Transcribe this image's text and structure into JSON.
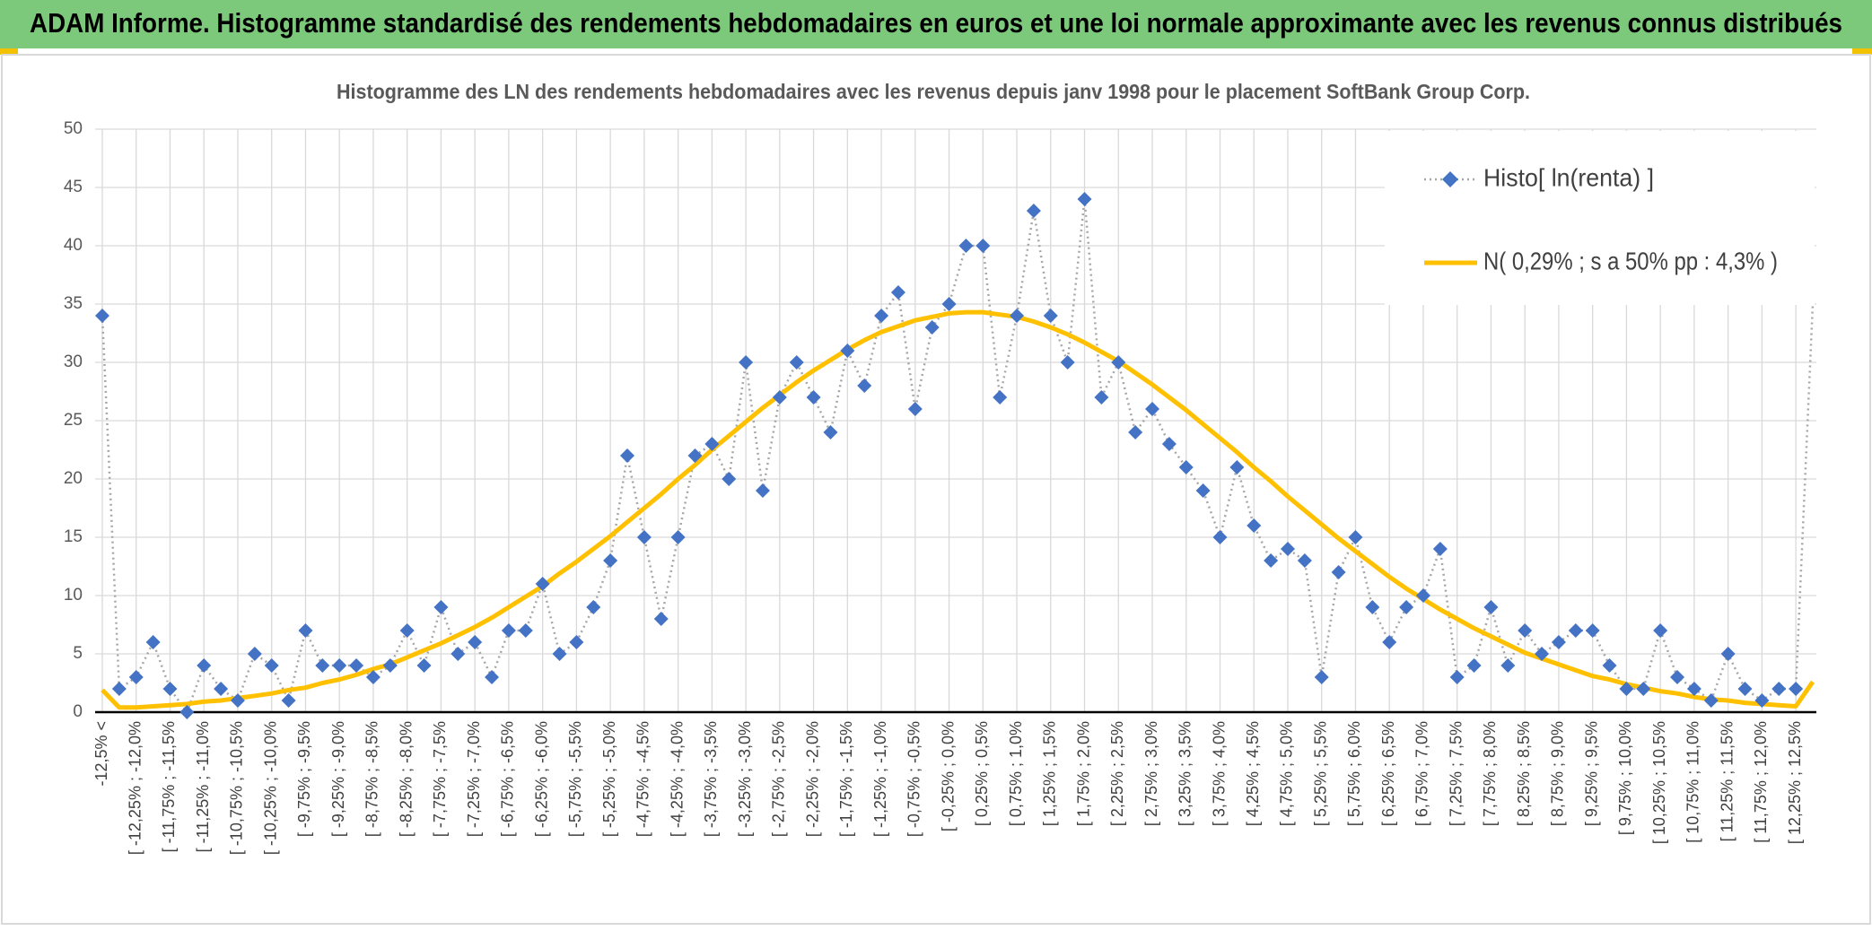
{
  "header": {
    "title": "ADAM Informe. Histogramme standardisé des rendements hebdomadaires en euros et une loi normale approximante avec les revenus connus distribués"
  },
  "chart_data": {
    "type": "line",
    "title": "Histogramme des LN des rendements hebdomadaires avec les revenus depuis janv 1998 pour le placement SoftBank Group Corp.",
    "categories": [
      "-12,5% <",
      null,
      "[ -12,25% ; -12,0%",
      null,
      "[ -11,75% ; -11,5%",
      null,
      "[ -11,25% ; -11,0%",
      null,
      "[ -10,75% ; -10,5%",
      null,
      "[ -10,25% ; -10,0%",
      null,
      "[ -9,75% ; -9,5%",
      null,
      "[ -9,25% ; -9,0%",
      null,
      "[ -8,75% ; -8,5%",
      null,
      "[ -8,25% ; -8,0%",
      null,
      "[ -7,75% ; -7,5%",
      null,
      "[ -7,25% ; -7,0%",
      null,
      "[ -6,75% ; -6,5%",
      null,
      "[ -6,25% ; -6,0%",
      null,
      "[ -5,75% ; -5,5%",
      null,
      "[ -5,25% ; -5,0%",
      null,
      "[ -4,75% ; -4,5%",
      null,
      "[ -4,25% ; -4,0%",
      null,
      "[ -3,75% ; -3,5%",
      null,
      "[ -3,25% ; -3,0%",
      null,
      "[ -2,75% ; -2,5%",
      null,
      "[ -2,25% ; -2,0%",
      null,
      "[ -1,75% ; -1,5%",
      null,
      "[ -1,25% ; -1,0%",
      null,
      "[ -0,75% ; -0,5%",
      null,
      "[ -0,25% ; 0,0%",
      null,
      "[ 0,25% ; 0,5%",
      null,
      "[ 0,75% ; 1,0%",
      null,
      "[ 1,25% ; 1,5%",
      null,
      "[ 1,75% ; 2,0%",
      null,
      "[ 2,25% ; 2,5%",
      null,
      "[ 2,75% ; 3,0%",
      null,
      "[ 3,25% ; 3,5%",
      null,
      "[ 3,75% ; 4,0%",
      null,
      "[ 4,25% ; 4,5%",
      null,
      "[ 4,75% ; 5,0%",
      null,
      "[ 5,25% ; 5,5%",
      null,
      "[ 5,75% ; 6,0%",
      null,
      "[ 6,25% ; 6,5%",
      null,
      "[ 6,75% ; 7,0%",
      null,
      "[ 7,25% ; 7,5%",
      null,
      "[ 7,75% ; 8,0%",
      null,
      "[ 8,25% ; 8,5%",
      null,
      "[ 8,75% ; 9,0%",
      null,
      "[ 9,25% ; 9,5%",
      null,
      "[ 9,75% ; 10,0%",
      null,
      "[ 10,25% ; 10,5%",
      null,
      "[ 10,75% ; 11,0%",
      null,
      "[ 11,25% ; 11,5%",
      null,
      "[ 11,75% ; 12,0%",
      null,
      "[ 12,25% ; 12,5%",
      null
    ],
    "series": [
      {
        "name": "Histo[ ln(renta) ]",
        "color": "#4472c4",
        "line_color": "#a6a6a6",
        "line_style": "dotted",
        "marker": "diamond",
        "values": [
          34,
          2,
          3,
          6,
          2,
          0,
          4,
          2,
          1,
          5,
          4,
          1,
          7,
          4,
          4,
          4,
          3,
          4,
          7,
          4,
          9,
          5,
          6,
          3,
          7,
          7,
          11,
          5,
          6,
          9,
          13,
          22,
          15,
          8,
          15,
          22,
          23,
          20,
          30,
          19,
          27,
          30,
          27,
          24,
          31,
          28,
          34,
          36,
          26,
          33,
          35,
          40,
          40,
          27,
          34,
          43,
          34,
          30,
          44,
          27,
          30,
          24,
          26,
          23,
          21,
          19,
          15,
          21,
          16,
          13,
          14,
          13,
          3,
          12,
          15,
          9,
          6,
          9,
          10,
          14,
          3,
          4,
          9,
          4,
          7,
          5,
          6,
          7,
          7,
          4,
          2,
          2,
          7,
          3,
          2,
          1,
          5,
          2,
          1,
          2,
          2,
          35
        ]
      },
      {
        "name": "N( 0,29% ; s a 50% pp : 4,3% )",
        "color": "#ffc000",
        "line_color": "#ffc000",
        "line_style": "solid",
        "marker": "none",
        "values": [
          1.9,
          0.4,
          0.4,
          0.5,
          0.6,
          0.7,
          0.9,
          1.0,
          1.2,
          1.4,
          1.6,
          1.9,
          2.1,
          2.5,
          2.8,
          3.2,
          3.7,
          4.1,
          4.7,
          5.3,
          5.9,
          6.6,
          7.3,
          8.1,
          9.0,
          9.9,
          10.8,
          11.9,
          12.9,
          14.0,
          15.1,
          16.3,
          17.5,
          18.7,
          20.0,
          21.2,
          22.5,
          23.7,
          24.9,
          26.1,
          27.2,
          28.3,
          29.3,
          30.2,
          31.1,
          31.9,
          32.6,
          33.1,
          33.6,
          33.9,
          34.2,
          34.3,
          34.3,
          34.1,
          33.9,
          33.5,
          33.0,
          32.4,
          31.7,
          30.9,
          30.1,
          29.1,
          28.1,
          27.0,
          25.9,
          24.7,
          23.5,
          22.3,
          21.0,
          19.8,
          18.5,
          17.3,
          16.1,
          14.9,
          13.8,
          12.7,
          11.6,
          10.6,
          9.7,
          8.8,
          8.0,
          7.2,
          6.5,
          5.8,
          5.1,
          4.6,
          4.1,
          3.6,
          3.1,
          2.8,
          2.4,
          2.1,
          1.8,
          1.6,
          1.3,
          1.1,
          1.0,
          0.8,
          0.7,
          0.6,
          0.5,
          2.6
        ]
      }
    ],
    "ylim": [
      0,
      50
    ],
    "yticks": [
      0,
      5,
      10,
      15,
      20,
      25,
      30,
      35,
      40,
      45,
      50
    ],
    "grid": true,
    "legend": "top right"
  }
}
